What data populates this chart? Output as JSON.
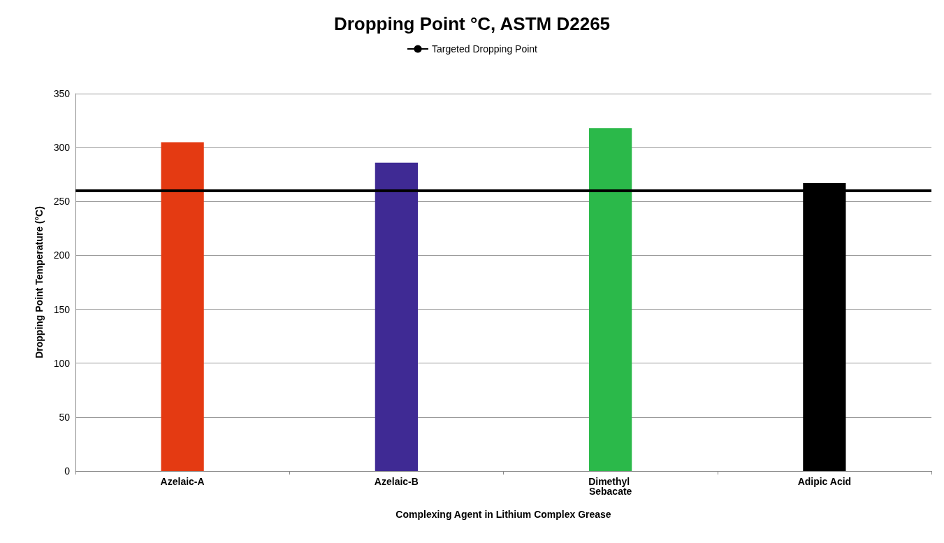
{
  "chart_data": {
    "type": "bar",
    "title": "Dropping Point °C, ASTM D2265",
    "xlabel": "Complexing Agent in Lithium Complex Grease",
    "ylabel": "Dropping Point Temperature (°C)",
    "categories": [
      "Azelaic-A",
      "Azelaic-B",
      "Dimethyl Sebacate",
      "Adipic Acid"
    ],
    "values": [
      305,
      286,
      318,
      267
    ],
    "colors": [
      "#e43a12",
      "#3f2a94",
      "#2bb94a",
      "#000000"
    ],
    "ylim": [
      0,
      350
    ],
    "yticks": [
      0,
      50,
      100,
      150,
      200,
      250,
      300,
      350
    ],
    "grid": "y",
    "legend": "top",
    "ref_lines": [
      {
        "axis": "y",
        "value": 260,
        "label": "Targeted Dropping Point",
        "color": "#000000",
        "line_style": "solid"
      }
    ]
  }
}
